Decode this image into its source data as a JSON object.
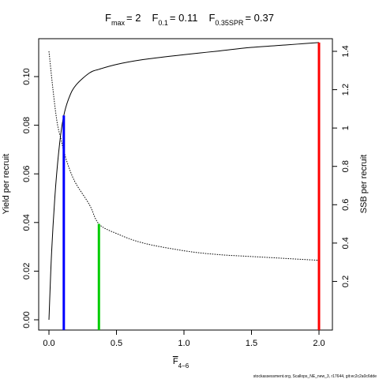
{
  "chart_data": {
    "type": "line",
    "title": {
      "fmax_symbol": "F",
      "fmax_sub": "max",
      "fmax_value": "= 2",
      "f01_symbol": "F",
      "f01_sub": "0.1",
      "f01_value": "= 0.11",
      "fspr_symbol": "F",
      "fspr_sub": "0.35SPR",
      "fspr_value": "= 0.37"
    },
    "xlabel": {
      "main": "F",
      "sub": "4−6",
      "overline": true
    },
    "ylabel_left": "Yield per recruit",
    "ylabel_right": "SSB per recruit",
    "xlim": [
      0,
      2
    ],
    "ylim_left": [
      0,
      0.115
    ],
    "ylim_right": [
      0,
      1.45
    ],
    "xticks": [
      0,
      0.5,
      1,
      1.5,
      2
    ],
    "xtick_labels": [
      "0.0",
      "0.5",
      "1.0",
      "1.5",
      "2.0"
    ],
    "yticks_left": [
      0,
      0.02,
      0.04,
      0.06,
      0.08,
      0.1
    ],
    "ytick_labels_left": [
      "0.00",
      "0.02",
      "0.04",
      "0.06",
      "0.08",
      "0.10"
    ],
    "yticks_right": [
      0.2,
      0.4,
      0.6,
      0.8,
      1.0,
      1.2,
      1.4
    ],
    "ytick_labels_right": [
      "0.2",
      "0.4",
      "0.6",
      "0.8",
      "1",
      "1.2",
      "1.4"
    ],
    "series": [
      {
        "axis": "left",
        "style": "solid",
        "color": "#000000",
        "x": [
          0,
          0.02,
          0.05,
          0.08,
          0.11,
          0.15,
          0.2,
          0.3,
          0.37,
          0.5,
          0.7,
          1.0,
          1.25,
          1.5,
          1.75,
          2.0
        ],
        "y": [
          0,
          0.028,
          0.055,
          0.073,
          0.084,
          0.0915,
          0.0965,
          0.1015,
          0.103,
          0.105,
          0.107,
          0.109,
          0.1105,
          0.112,
          0.113,
          0.114
        ]
      },
      {
        "axis": "right",
        "style": "dotted",
        "color": "#000000",
        "x": [
          0,
          0.03,
          0.06,
          0.09,
          0.11,
          0.15,
          0.2,
          0.3,
          0.37,
          0.5,
          0.7,
          1.0,
          1.25,
          1.5,
          1.75,
          2.0
        ],
        "y": [
          1.4,
          1.2,
          1.03,
          0.94,
          0.88,
          0.79,
          0.71,
          0.6,
          0.5,
          0.45,
          0.4,
          0.36,
          0.34,
          0.33,
          0.32,
          0.31
        ]
      }
    ],
    "reference_lines": [
      {
        "label": "F0.1",
        "x": 0.11,
        "axis": "left",
        "y": 0.084,
        "color": "#0000ff"
      },
      {
        "label": "F0.35SPR",
        "x": 0.37,
        "axis": "right",
        "y": 0.5,
        "color": "#00cc00"
      },
      {
        "label": "Fmax",
        "x": 2.0,
        "axis": "left",
        "y": 0.114,
        "color": "#ff0000"
      }
    ],
    "grid": false,
    "legend": "none"
  },
  "footer": "stockassessment.org, Scallops_NE_new_3, r17644, git:ec2c2a0c6dde"
}
